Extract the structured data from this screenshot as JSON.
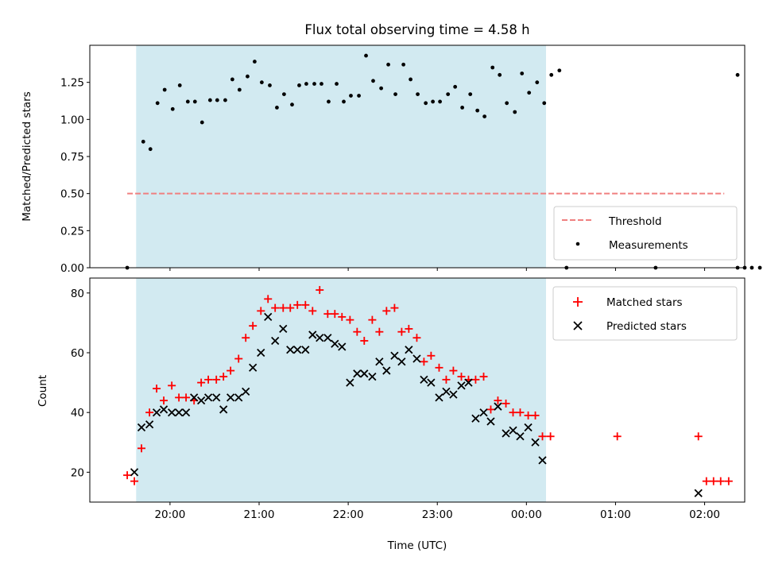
{
  "chart_data": [
    {
      "type": "scatter",
      "title": "Flux total observing time = 4.58 h",
      "xlabel": "",
      "ylabel": "Matched/Predicted stars",
      "x_unit": "UTC time (hours, values >= 24 are after midnight)",
      "xlim": [
        19.1,
        26.45
      ],
      "ylim": [
        0,
        1.5
      ],
      "yticks": [
        "0.00",
        "0.25",
        "0.50",
        "0.75",
        "1.00",
        "1.25"
      ],
      "grid": false,
      "shaded_span": [
        19.62,
        24.22
      ],
      "shade_color": "#add8e6",
      "legend_position": "lower right",
      "legend": [
        "Threshold",
        "Measurements"
      ],
      "threshold": {
        "name": "Threshold",
        "y": 0.5,
        "x_range": [
          19.52,
          26.22
        ],
        "color": "#f08080",
        "style": "dashed"
      },
      "series": [
        {
          "name": "Measurements",
          "marker": "dot",
          "color": "#000000",
          "points": [
            [
              19.52,
              0.0
            ],
            [
              19.7,
              0.85
            ],
            [
              19.78,
              0.8
            ],
            [
              19.86,
              1.11
            ],
            [
              19.94,
              1.2
            ],
            [
              20.03,
              1.07
            ],
            [
              20.11,
              1.23
            ],
            [
              20.2,
              1.12
            ],
            [
              20.28,
              1.12
            ],
            [
              20.36,
              0.98
            ],
            [
              20.45,
              1.13
            ],
            [
              20.53,
              1.13
            ],
            [
              20.62,
              1.13
            ],
            [
              20.7,
              1.27
            ],
            [
              20.78,
              1.2
            ],
            [
              20.87,
              1.29
            ],
            [
              20.95,
              1.39
            ],
            [
              21.03,
              1.25
            ],
            [
              21.12,
              1.23
            ],
            [
              21.2,
              1.08
            ],
            [
              21.28,
              1.17
            ],
            [
              21.37,
              1.1
            ],
            [
              21.45,
              1.23
            ],
            [
              21.53,
              1.24
            ],
            [
              21.62,
              1.24
            ],
            [
              21.7,
              1.24
            ],
            [
              21.78,
              1.12
            ],
            [
              21.87,
              1.24
            ],
            [
              21.95,
              1.12
            ],
            [
              22.03,
              1.16
            ],
            [
              22.12,
              1.16
            ],
            [
              22.2,
              1.43
            ],
            [
              22.28,
              1.26
            ],
            [
              22.37,
              1.21
            ],
            [
              22.45,
              1.37
            ],
            [
              22.53,
              1.17
            ],
            [
              22.62,
              1.37
            ],
            [
              22.7,
              1.27
            ],
            [
              22.78,
              1.17
            ],
            [
              22.87,
              1.11
            ],
            [
              22.95,
              1.12
            ],
            [
              23.03,
              1.12
            ],
            [
              23.12,
              1.17
            ],
            [
              23.2,
              1.22
            ],
            [
              23.28,
              1.08
            ],
            [
              23.37,
              1.17
            ],
            [
              23.45,
              1.06
            ],
            [
              23.53,
              1.02
            ],
            [
              23.62,
              1.35
            ],
            [
              23.7,
              1.3
            ],
            [
              23.78,
              1.11
            ],
            [
              23.87,
              1.05
            ],
            [
              23.95,
              1.31
            ],
            [
              24.03,
              1.18
            ],
            [
              24.12,
              1.25
            ],
            [
              24.2,
              1.11
            ],
            [
              24.28,
              1.3
            ],
            [
              24.37,
              1.33
            ],
            [
              24.45,
              0.0
            ],
            [
              25.45,
              0.0
            ],
            [
              26.37,
              1.3
            ],
            [
              26.37,
              0.0
            ],
            [
              26.45,
              0.0
            ],
            [
              26.53,
              0.0
            ],
            [
              26.62,
              0.0
            ]
          ]
        }
      ]
    },
    {
      "type": "scatter",
      "title": "",
      "xlabel": "Time (UTC)",
      "ylabel": "Count",
      "x_unit": "UTC time (hours, values >= 24 are after midnight)",
      "xlim": [
        19.1,
        26.45
      ],
      "ylim": [
        10,
        85
      ],
      "xticks": [
        "20:00",
        "21:00",
        "22:00",
        "23:00",
        "00:00",
        "01:00",
        "02:00"
      ],
      "yticks": [
        "20",
        "40",
        "60",
        "80"
      ],
      "grid": false,
      "shaded_span": [
        19.62,
        24.22
      ],
      "shade_color": "#add8e6",
      "legend_position": "upper right",
      "legend": [
        "Matched stars",
        "Predicted stars"
      ],
      "series": [
        {
          "name": "Matched stars",
          "marker": "plus",
          "color": "#ff0000",
          "points": [
            [
              19.52,
              19
            ],
            [
              19.6,
              17
            ],
            [
              19.68,
              28
            ],
            [
              19.77,
              40
            ],
            [
              19.85,
              48
            ],
            [
              19.93,
              44
            ],
            [
              20.02,
              49
            ],
            [
              20.1,
              45
            ],
            [
              20.18,
              45
            ],
            [
              20.27,
              44
            ],
            [
              20.35,
              50
            ],
            [
              20.43,
              51
            ],
            [
              20.52,
              51
            ],
            [
              20.6,
              52
            ],
            [
              20.68,
              54
            ],
            [
              20.77,
              58
            ],
            [
              20.85,
              65
            ],
            [
              20.93,
              69
            ],
            [
              21.02,
              74
            ],
            [
              21.1,
              78
            ],
            [
              21.18,
              75
            ],
            [
              21.27,
              75
            ],
            [
              21.35,
              75
            ],
            [
              21.43,
              76
            ],
            [
              21.52,
              76
            ],
            [
              21.6,
              74
            ],
            [
              21.68,
              81
            ],
            [
              21.77,
              73
            ],
            [
              21.85,
              73
            ],
            [
              21.93,
              72
            ],
            [
              22.02,
              71
            ],
            [
              22.1,
              67
            ],
            [
              22.18,
              64
            ],
            [
              22.27,
              71
            ],
            [
              22.35,
              67
            ],
            [
              22.43,
              74
            ],
            [
              22.52,
              75
            ],
            [
              22.6,
              67
            ],
            [
              22.68,
              68
            ],
            [
              22.77,
              65
            ],
            [
              22.85,
              57
            ],
            [
              22.93,
              59
            ],
            [
              23.02,
              55
            ],
            [
              23.1,
              51
            ],
            [
              23.18,
              54
            ],
            [
              23.27,
              52
            ],
            [
              23.35,
              51
            ],
            [
              23.43,
              51
            ],
            [
              23.52,
              52
            ],
            [
              23.6,
              41
            ],
            [
              23.68,
              44
            ],
            [
              23.77,
              43
            ],
            [
              23.85,
              40
            ],
            [
              23.93,
              40
            ],
            [
              24.02,
              39
            ],
            [
              24.1,
              39
            ],
            [
              24.18,
              32
            ],
            [
              24.27,
              32
            ],
            [
              25.02,
              32
            ],
            [
              25.93,
              32
            ],
            [
              26.02,
              17
            ],
            [
              26.1,
              17
            ],
            [
              26.18,
              17
            ],
            [
              26.27,
              17
            ]
          ]
        },
        {
          "name": "Predicted stars",
          "marker": "x",
          "color": "#000000",
          "points": [
            [
              19.6,
              20
            ],
            [
              19.68,
              35
            ],
            [
              19.77,
              36
            ],
            [
              19.85,
              40
            ],
            [
              19.93,
              41
            ],
            [
              20.02,
              40
            ],
            [
              20.1,
              40
            ],
            [
              20.18,
              40
            ],
            [
              20.27,
              45
            ],
            [
              20.35,
              44
            ],
            [
              20.43,
              45
            ],
            [
              20.52,
              45
            ],
            [
              20.6,
              41
            ],
            [
              20.68,
              45
            ],
            [
              20.77,
              45
            ],
            [
              20.85,
              47
            ],
            [
              20.93,
              55
            ],
            [
              21.02,
              60
            ],
            [
              21.1,
              72
            ],
            [
              21.18,
              64
            ],
            [
              21.27,
              68
            ],
            [
              21.35,
              61
            ],
            [
              21.43,
              61
            ],
            [
              21.52,
              61
            ],
            [
              21.6,
              66
            ],
            [
              21.68,
              65
            ],
            [
              21.77,
              65
            ],
            [
              21.85,
              63
            ],
            [
              21.93,
              62
            ],
            [
              22.02,
              50
            ],
            [
              22.1,
              53
            ],
            [
              22.18,
              53
            ],
            [
              22.27,
              52
            ],
            [
              22.35,
              57
            ],
            [
              22.43,
              54
            ],
            [
              22.52,
              59
            ],
            [
              22.6,
              57
            ],
            [
              22.68,
              61
            ],
            [
              22.77,
              58
            ],
            [
              22.85,
              51
            ],
            [
              22.93,
              50
            ],
            [
              23.02,
              45
            ],
            [
              23.1,
              47
            ],
            [
              23.18,
              46
            ],
            [
              23.27,
              49
            ],
            [
              23.35,
              50
            ],
            [
              23.43,
              38
            ],
            [
              23.52,
              40
            ],
            [
              23.6,
              37
            ],
            [
              23.68,
              42
            ],
            [
              23.77,
              33
            ],
            [
              23.85,
              34
            ],
            [
              23.93,
              32
            ],
            [
              24.02,
              35
            ],
            [
              24.1,
              30
            ],
            [
              24.18,
              24
            ],
            [
              25.93,
              13
            ]
          ]
        }
      ]
    }
  ]
}
